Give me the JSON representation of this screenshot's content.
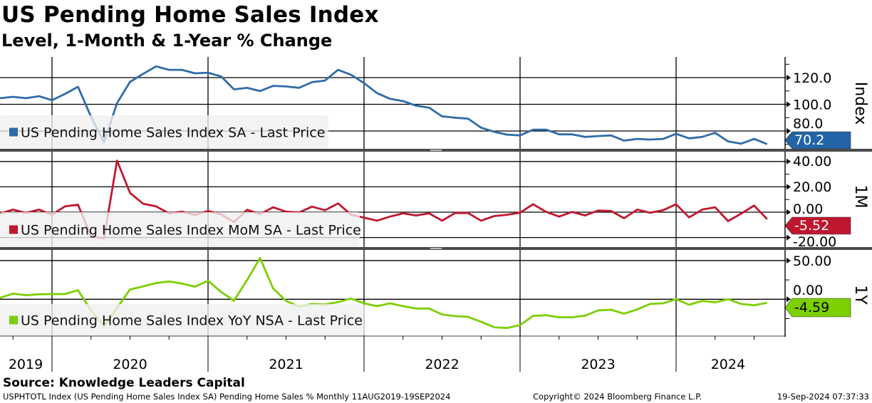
{
  "title": "US Pending Home Sales Index",
  "subtitle": "Level, 1-Month & 1-Year % Change",
  "source": "Source: Knowledge Leaders Capital",
  "footer": {
    "left": "USPHTOTL Index (US Pending Home Sales Index SA) Pending Home Sales %  Monthly 11AUG2019-19SEP2024",
    "center": "Copyright© 2024 Bloomberg Finance L.P.",
    "right": "19-Sep-2024 07:37:33"
  },
  "colors": {
    "index": "#2e6ca8",
    "mom": "#c0182f",
    "yoy": "#7ccf00",
    "tag_index": "#2264a6",
    "tag_mom": "#bf1730",
    "tag_yoy": "#7ccf00"
  },
  "chart_data": [
    {
      "type": "line",
      "panel": "Index",
      "legend": "US Pending Home Sales Index SA - Last Price",
      "axis_title": "Index",
      "ylim": [
        66,
        135
      ],
      "yticks": [
        {
          "v": 80,
          "label": "80.0"
        },
        {
          "v": 100,
          "label": "100.0"
        },
        {
          "v": 120,
          "label": "120.0"
        }
      ],
      "last_value_label": "70.2",
      "values": [
        104.6,
        105.6,
        104.6,
        106.1,
        103.1,
        107.8,
        113.1,
        90.6,
        71.5,
        100.9,
        116.8,
        122.8,
        128.4,
        125.8,
        125.8,
        123.2,
        123.7,
        120.9,
        111.2,
        112.3,
        109.9,
        113.8,
        113.4,
        112.3,
        116.6,
        117.8,
        125.8,
        122.1,
        115.9,
        108.4,
        104.1,
        102.4,
        99.0,
        97.5,
        91.0,
        90.0,
        89.3,
        82.5,
        79.4,
        77.3,
        76.7,
        81.0,
        81.0,
        77.5,
        77.5,
        75.6,
        76.2,
        76.7,
        72.8,
        74.1,
        73.6,
        74.1,
        77.9,
        74.5,
        75.6,
        78.6,
        72.2,
        70.5,
        74.1,
        70.2
      ]
    },
    {
      "type": "line",
      "panel": "1M",
      "legend": "US Pending Home Sales Index MoM SA - Last Price",
      "axis_title": "1M",
      "ylim": [
        -28,
        47
      ],
      "yticks": [
        {
          "v": 40,
          "label": "40.00"
        },
        {
          "v": 20,
          "label": "20.00"
        },
        {
          "v": 0,
          "label": "0.00"
        },
        {
          "v": -20,
          "label": "-20.00"
        }
      ],
      "last_value_label": "-5.52",
      "values": [
        -1.1,
        2.0,
        -0.6,
        2.0,
        -2.0,
        4.6,
        5.9,
        -19.1,
        -20.6,
        40.6,
        15.2,
        6.7,
        4.6,
        -0.9,
        0.4,
        -2.2,
        0.9,
        -1.7,
        -7.8,
        1.9,
        -1.5,
        3.9,
        0.4,
        -0.2,
        4.4,
        1.5,
        6.9,
        -2.0,
        -4.3,
        -6.7,
        -3.5,
        -0.9,
        -2.6,
        -0.9,
        -6.7,
        -0.7,
        -0.7,
        -6.7,
        -3.1,
        -2.0,
        -0.4,
        6.3,
        0.2,
        -3.5,
        0.2,
        -2.6,
        1.3,
        0.9,
        -4.8,
        2.0,
        -0.4,
        1.5,
        6.3,
        -4.1,
        2.0,
        3.9,
        -7.0,
        -1.1,
        5.2,
        -5.52
      ]
    },
    {
      "type": "line",
      "panel": "1Y",
      "legend": "US Pending Home Sales Index YoY NSA - Last Price",
      "axis_title": "1Y",
      "ylim": [
        -48,
        63
      ],
      "yticks": [
        {
          "v": 50,
          "label": "50.00"
        },
        {
          "v": 0,
          "label": "0.00"
        }
      ],
      "last_value_label": "-4.59",
      "values": [
        1.8,
        7.4,
        5.2,
        6.4,
        6.7,
        6.7,
        11.7,
        -14.4,
        -35.0,
        -11.3,
        12.6,
        16.6,
        20.9,
        23.0,
        20.2,
        16.3,
        23.9,
        9.5,
        -1.8,
        24.8,
        53.4,
        14.1,
        -2.1,
        -9.5,
        -6.1,
        -6.7,
        -3.7,
        0.9,
        -5.2,
        -8.9,
        -5.2,
        -8.9,
        -12.0,
        -12.0,
        -19.6,
        -21.8,
        -22.7,
        -29.1,
        -36.2,
        -37.1,
        -33.4,
        -21.5,
        -20.6,
        -23.3,
        -23.3,
        -21.2,
        -14.4,
        -13.5,
        -18.7,
        -13.2,
        -6.1,
        -5.2,
        0.0,
        -7.1,
        -2.1,
        -4.0,
        0.0,
        -6.1,
        -7.7,
        -4.59
      ]
    }
  ],
  "x_axis": {
    "frequency": "Monthly",
    "year_labels": [
      "2019",
      "2020",
      "2021",
      "2022",
      "2023",
      "2024"
    ],
    "year_start_month_index": [
      4,
      16,
      28,
      40,
      52
    ]
  }
}
